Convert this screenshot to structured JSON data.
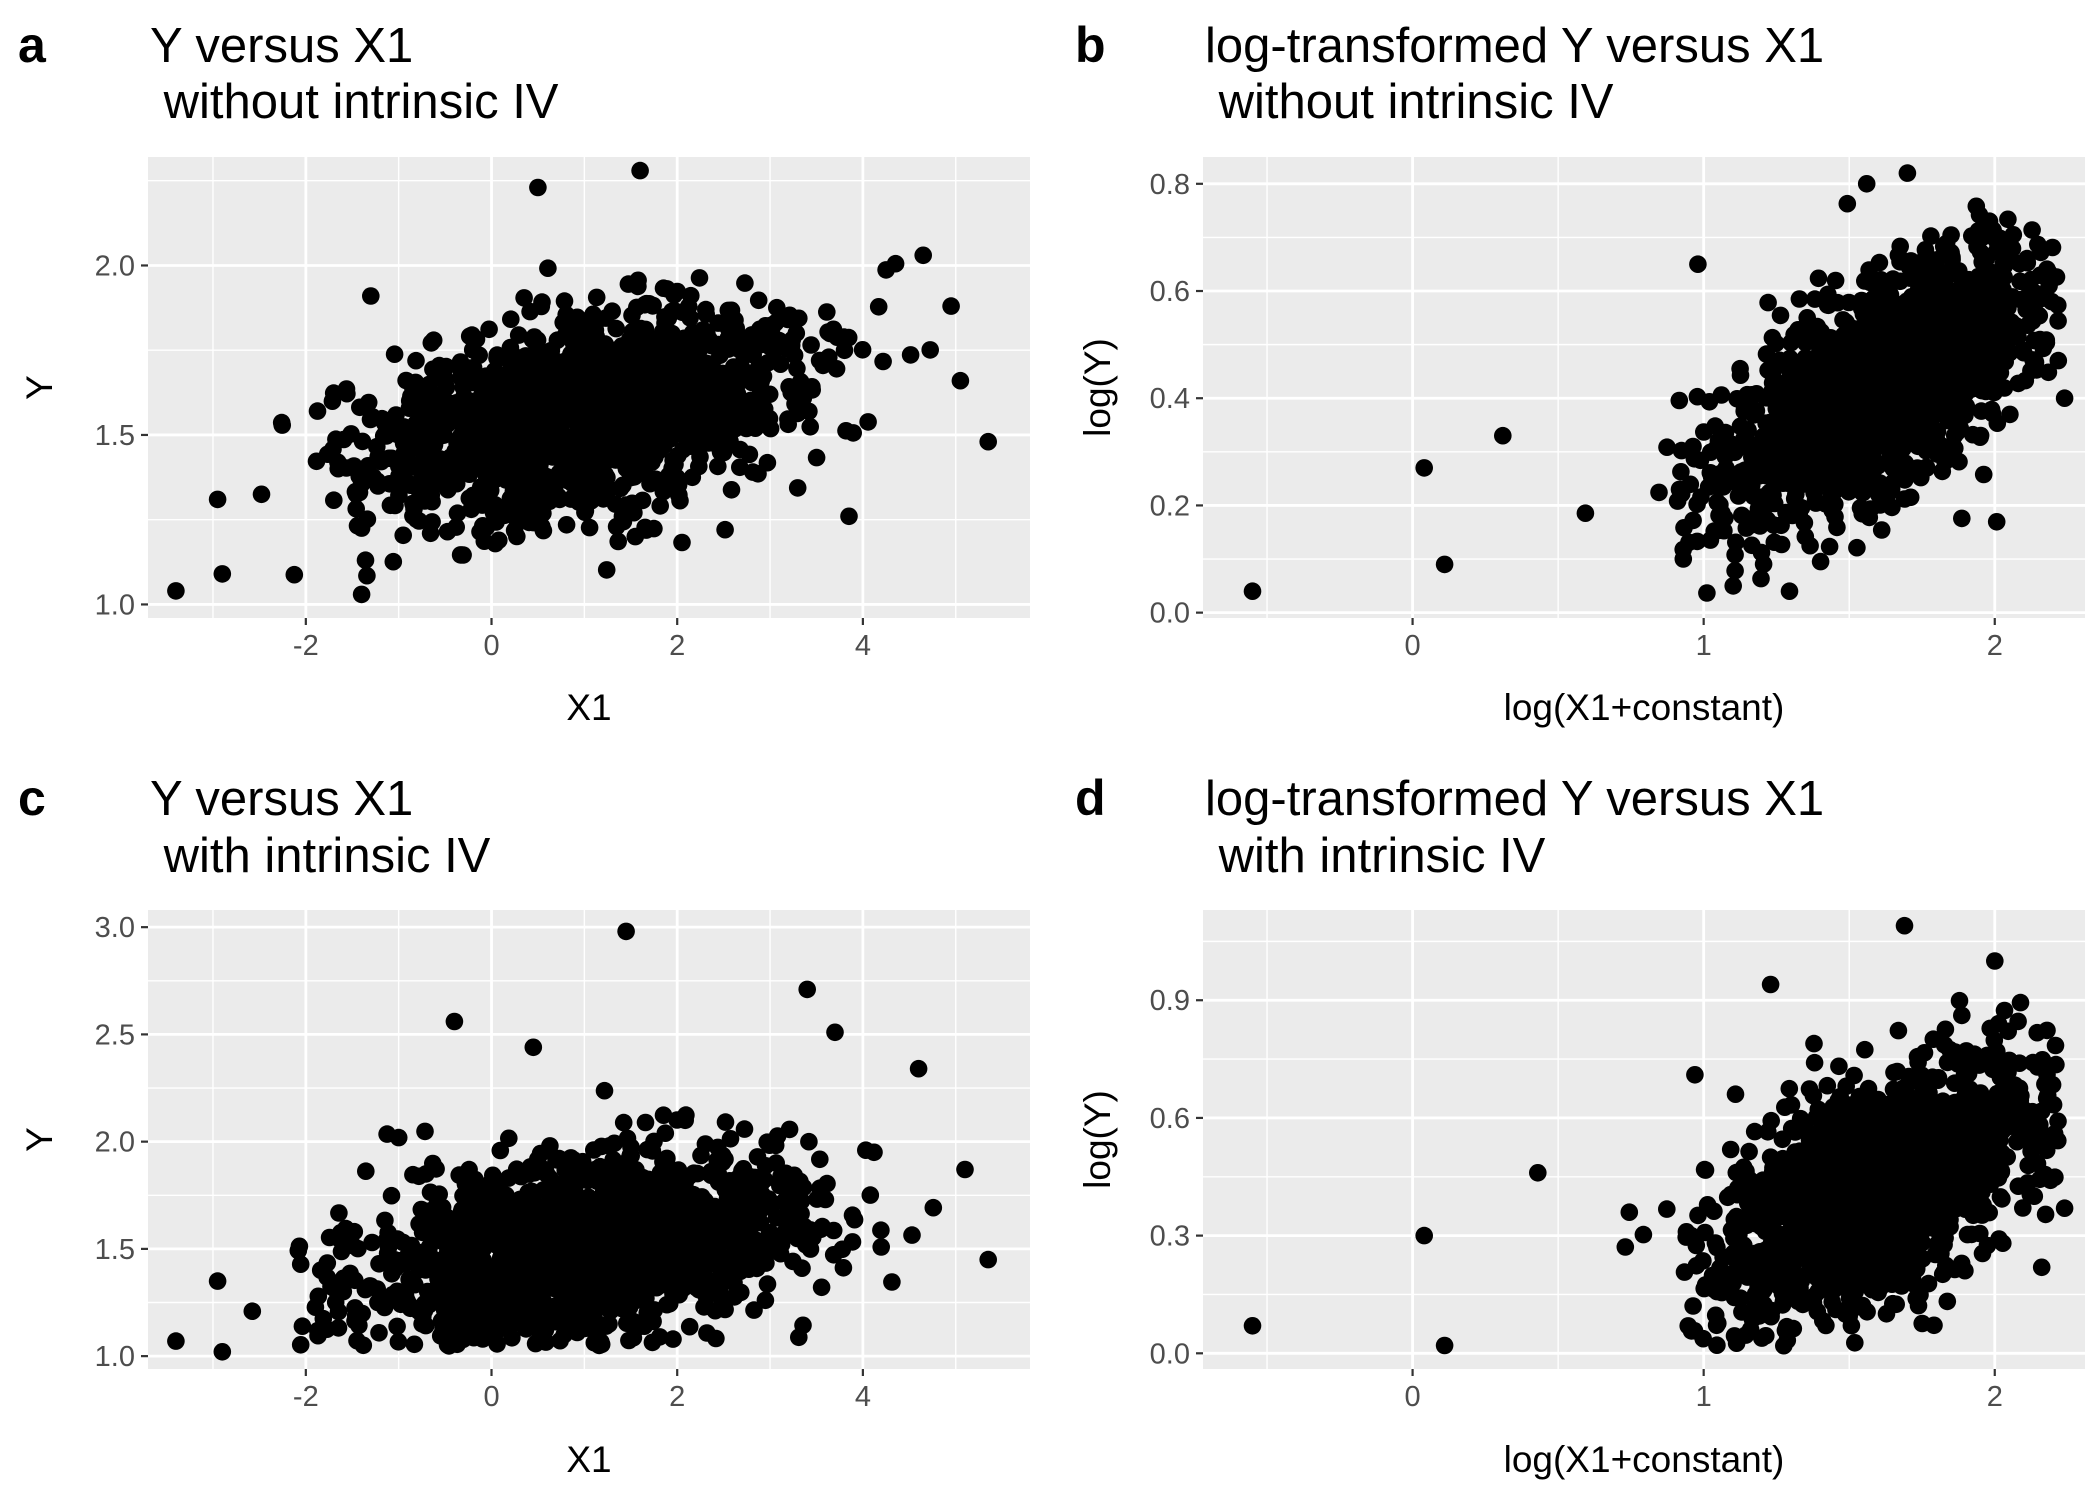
{
  "style": {
    "panel_background": "#ebebeb",
    "grid_major": "#ffffff",
    "point_color": "#000000",
    "tick_color": "#333333",
    "tick_label_color": "#4d4d4d"
  },
  "chart_data": [
    {
      "letter": "a",
      "type": "scatter",
      "title_line1": "Y versus X1",
      "title_line2": " without intrinsic IV",
      "xlabel": "X1",
      "ylabel": "Y",
      "xlim": [
        -3.7,
        5.8
      ],
      "ylim": [
        0.96,
        2.32
      ],
      "xticks": [
        -2,
        0,
        2,
        4
      ],
      "yticks": [
        1.0,
        1.5,
        2.0
      ],
      "ytick_labels": [
        "1.0",
        "1.5",
        "2.0"
      ],
      "xgrid_minor": [
        -3,
        -1,
        1,
        3,
        5
      ],
      "ygrid_minor": [
        1.25,
        1.75,
        2.25
      ],
      "grid": true,
      "point_count": 1500,
      "notable_points": [
        {
          "x": -3.4,
          "y": 1.04
        },
        {
          "x": -2.9,
          "y": 1.09
        },
        {
          "x": -2.95,
          "y": 1.31
        },
        {
          "x": 1.6,
          "y": 2.28
        },
        {
          "x": 0.5,
          "y": 2.23
        },
        {
          "x": 5.35,
          "y": 1.48
        },
        {
          "x": 5.05,
          "y": 1.66
        },
        {
          "x": 4.95,
          "y": 1.88
        },
        {
          "x": 3.85,
          "y": 1.26
        },
        {
          "x": 4.65,
          "y": 2.03
        },
        {
          "x": -1.3,
          "y": 1.91
        }
      ],
      "trend": {
        "slope": 0.06,
        "intercept": 1.5,
        "noise": 0.14,
        "x_mean": 1.0,
        "x_sd": 1.2
      }
    },
    {
      "letter": "b",
      "type": "scatter",
      "title_line1": "log-transformed Y versus X1",
      "title_line2": " without intrinsic IV",
      "xlabel": "log(X1+constant)",
      "ylabel": "log(Y)",
      "xlim": [
        -0.72,
        2.31
      ],
      "ylim": [
        -0.01,
        0.85
      ],
      "xticks": [
        0,
        1,
        2
      ],
      "yticks": [
        0.0,
        0.2,
        0.4,
        0.6,
        0.8
      ],
      "ytick_labels": [
        "0.0",
        "0.2",
        "0.4",
        "0.6",
        "0.8"
      ],
      "xgrid_minor": [
        -0.5,
        0.5,
        1.5
      ],
      "ygrid_minor": [
        0.1,
        0.3,
        0.5,
        0.7
      ],
      "grid": true,
      "point_count": 1500,
      "notable_points": [
        {
          "x": -0.55,
          "y": 0.04
        },
        {
          "x": 0.04,
          "y": 0.27
        },
        {
          "x": 0.11,
          "y": 0.09
        },
        {
          "x": 0.31,
          "y": 0.33
        },
        {
          "x": 0.93,
          "y": 0.1
        },
        {
          "x": 0.98,
          "y": 0.65
        },
        {
          "x": 1.7,
          "y": 0.82
        },
        {
          "x": 1.56,
          "y": 0.8
        },
        {
          "x": 2.24,
          "y": 0.4
        }
      ],
      "trend": {
        "slope": 0.28,
        "intercept": 0.0,
        "noise": 0.11,
        "x_mean": 1.6,
        "x_sd": 0.28
      }
    },
    {
      "letter": "c",
      "type": "scatter",
      "title_line1": "Y versus X1",
      "title_line2": " with intrinsic IV",
      "xlabel": "X1",
      "ylabel": "Y",
      "xlim": [
        -3.7,
        5.8
      ],
      "ylim": [
        0.94,
        3.08
      ],
      "xticks": [
        -2,
        0,
        2,
        4
      ],
      "yticks": [
        1.0,
        1.5,
        2.0,
        2.5,
        3.0
      ],
      "ytick_labels": [
        "1.0",
        "1.5",
        "2.0",
        "2.5",
        "3.0"
      ],
      "xgrid_minor": [
        -3,
        -1,
        1,
        3,
        5
      ],
      "ygrid_minor": [
        1.25,
        1.75,
        2.25,
        2.75
      ],
      "grid": true,
      "point_count": 1500,
      "notable_points": [
        {
          "x": -3.4,
          "y": 1.07
        },
        {
          "x": -2.9,
          "y": 1.02
        },
        {
          "x": -2.95,
          "y": 1.35
        },
        {
          "x": 1.45,
          "y": 2.98
        },
        {
          "x": 3.4,
          "y": 2.71
        },
        {
          "x": -0.4,
          "y": 2.56
        },
        {
          "x": 5.35,
          "y": 1.45
        },
        {
          "x": 5.1,
          "y": 1.87
        },
        {
          "x": 4.6,
          "y": 2.34
        },
        {
          "x": 3.7,
          "y": 2.51
        },
        {
          "x": 0.45,
          "y": 2.44
        }
      ],
      "trend": {
        "slope": 0.06,
        "intercept": 1.45,
        "noise": 0.21,
        "x_mean": 1.0,
        "x_sd": 1.2
      }
    },
    {
      "letter": "d",
      "type": "scatter",
      "title_line1": "log-transformed Y versus X1",
      "title_line2": " with intrinsic IV",
      "xlabel": "log(X1+constant)",
      "ylabel": "log(Y)",
      "xlim": [
        -0.72,
        2.31
      ],
      "ylim": [
        -0.04,
        1.13
      ],
      "xticks": [
        0,
        1,
        2
      ],
      "yticks": [
        0.0,
        0.3,
        0.6,
        0.9
      ],
      "ytick_labels": [
        "0.0",
        "0.3",
        "0.6",
        "0.9"
      ],
      "xgrid_minor": [
        -0.5,
        0.5,
        1.5
      ],
      "ygrid_minor": [
        0.15,
        0.45,
        0.75,
        1.05
      ],
      "grid": true,
      "point_count": 1500,
      "notable_points": [
        {
          "x": -0.55,
          "y": 0.07
        },
        {
          "x": 0.04,
          "y": 0.3
        },
        {
          "x": 0.11,
          "y": 0.02
        },
        {
          "x": 0.43,
          "y": 0.46
        },
        {
          "x": 1.69,
          "y": 1.09
        },
        {
          "x": 2.0,
          "y": 1.0
        },
        {
          "x": 1.23,
          "y": 0.94
        },
        {
          "x": 2.24,
          "y": 0.37
        },
        {
          "x": 0.97,
          "y": 0.71
        }
      ],
      "trend": {
        "slope": 0.28,
        "intercept": 0.0,
        "noise": 0.15,
        "x_mean": 1.6,
        "x_sd": 0.28
      }
    }
  ]
}
